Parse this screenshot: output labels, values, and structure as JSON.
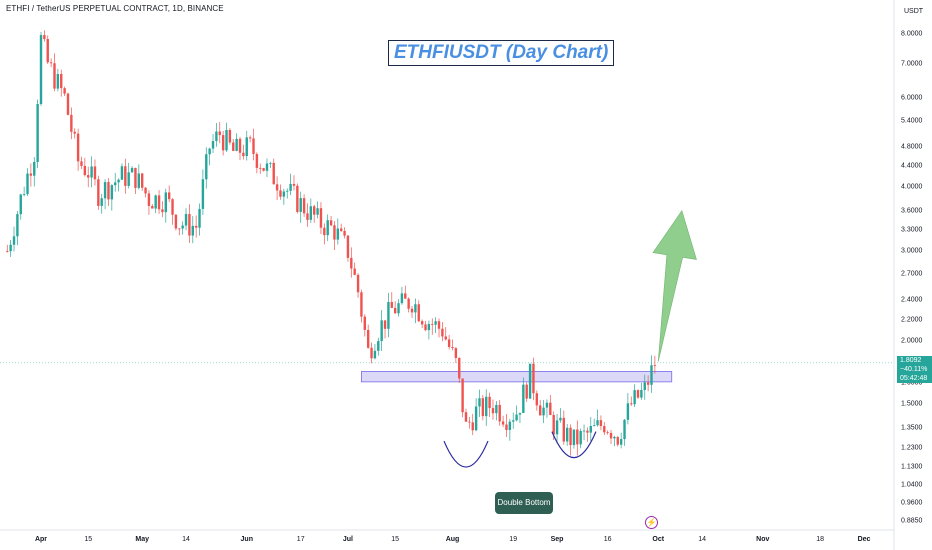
{
  "header": {
    "symbol_line": "ETHFI / TetherUS PERPETUAL CONTRACT, 1D, BINANCE"
  },
  "chart_title": "ETHFIUSDT (Day Chart)",
  "pattern_label": "Double Bottom",
  "price_axis": {
    "unit": "USDT",
    "ticks": [
      "8.0000",
      "7.0000",
      "6.0000",
      "5.4000",
      "4.8000",
      "4.4000",
      "4.0000",
      "3.6000",
      "3.3000",
      "3.0000",
      "2.7000",
      "2.4000",
      "2.2000",
      "2.0000",
      "1.8000",
      "1.6500",
      "1.5000",
      "1.3500",
      "1.2300",
      "1.1300",
      "1.0400",
      "0.9600",
      "0.8850"
    ]
  },
  "time_axis": {
    "ticks": [
      "Apr",
      "15",
      "May",
      "14",
      "Jun",
      "17",
      "Jul",
      "15",
      "Aug",
      "19",
      "Sep",
      "16",
      "Oct",
      "14",
      "Nov",
      "18",
      "Dec"
    ],
    "months": [
      "Apr",
      "May",
      "Jun",
      "Jul",
      "Aug",
      "Sep",
      "Oct",
      "Nov",
      "Dec"
    ]
  },
  "last_price_tag": {
    "price": "1.8092",
    "change": "−40.11%",
    "countdown": "05:42:48"
  },
  "colors": {
    "up": "#26a69a",
    "down": "#ef5350",
    "zone_fill": "#d9d4f7",
    "zone_border": "#6b5ce7",
    "arc": "#2a2a9e",
    "arrow": "#7dc67a",
    "title_text": "#4a90e2",
    "label_bg": "#2f5f53"
  },
  "icons": {
    "event_marker": "lightning-icon"
  },
  "chart_data": {
    "type": "candlestick",
    "title": "ETHFIUSDT (Day Chart)",
    "log_scale": true,
    "ylim": [
      0.86,
      9.0
    ],
    "x_axis_dates": [
      "2024-04-01",
      "2024-12-01"
    ],
    "price_waypoints": [
      {
        "date": "2024-03-22",
        "price": 3.0
      },
      {
        "date": "2024-03-26",
        "price": 3.8
      },
      {
        "date": "2024-03-30",
        "price": 4.7
      },
      {
        "date": "2024-04-01",
        "price": 7.8
      },
      {
        "date": "2024-04-03",
        "price": 7.0
      },
      {
        "date": "2024-04-08",
        "price": 6.0
      },
      {
        "date": "2024-04-12",
        "price": 4.5
      },
      {
        "date": "2024-04-15",
        "price": 4.3
      },
      {
        "date": "2024-04-18",
        "price": 3.9
      },
      {
        "date": "2024-04-25",
        "price": 4.2
      },
      {
        "date": "2024-04-29",
        "price": 4.2
      },
      {
        "date": "2024-05-03",
        "price": 3.8
      },
      {
        "date": "2024-05-08",
        "price": 3.8
      },
      {
        "date": "2024-05-12",
        "price": 3.4
      },
      {
        "date": "2024-05-17",
        "price": 3.35
      },
      {
        "date": "2024-05-21",
        "price": 4.8
      },
      {
        "date": "2024-05-24",
        "price": 5.1
      },
      {
        "date": "2024-05-28",
        "price": 4.7
      },
      {
        "date": "2024-06-02",
        "price": 4.8
      },
      {
        "date": "2024-06-06",
        "price": 4.4
      },
      {
        "date": "2024-06-12",
        "price": 4.0
      },
      {
        "date": "2024-06-19",
        "price": 3.6
      },
      {
        "date": "2024-06-23",
        "price": 3.4
      },
      {
        "date": "2024-06-27",
        "price": 3.3
      },
      {
        "date": "2024-07-01",
        "price": 3.0
      },
      {
        "date": "2024-07-04",
        "price": 2.5
      },
      {
        "date": "2024-07-07",
        "price": 1.9
      },
      {
        "date": "2024-07-10",
        "price": 2.1
      },
      {
        "date": "2024-07-14",
        "price": 2.3
      },
      {
        "date": "2024-07-20",
        "price": 2.4
      },
      {
        "date": "2024-07-24",
        "price": 2.2
      },
      {
        "date": "2024-07-29",
        "price": 2.1
      },
      {
        "date": "2024-08-02",
        "price": 1.8
      },
      {
        "date": "2024-08-05",
        "price": 1.35
      },
      {
        "date": "2024-08-08",
        "price": 1.45
      },
      {
        "date": "2024-08-13",
        "price": 1.5
      },
      {
        "date": "2024-08-17",
        "price": 1.42
      },
      {
        "date": "2024-08-20",
        "price": 1.45
      },
      {
        "date": "2024-08-24",
        "price": 1.7
      },
      {
        "date": "2024-08-27",
        "price": 1.5
      },
      {
        "date": "2024-08-31",
        "price": 1.37
      },
      {
        "date": "2024-09-06",
        "price": 1.27
      },
      {
        "date": "2024-09-11",
        "price": 1.32
      },
      {
        "date": "2024-09-15",
        "price": 1.38
      },
      {
        "date": "2024-09-19",
        "price": 1.3
      },
      {
        "date": "2024-09-23",
        "price": 1.5
      },
      {
        "date": "2024-09-27",
        "price": 1.6
      },
      {
        "date": "2024-09-30",
        "price": 1.81
      }
    ],
    "resistance_zone": {
      "from": "2024-07-05",
      "to": "2024-10-05",
      "low": 1.66,
      "high": 1.74
    },
    "current_price": 1.8092,
    "change_pct": -40.11,
    "projection_arrow": {
      "from": {
        "date": "2024-10-01",
        "price": 1.82
      },
      "to": {
        "date": "2024-10-08",
        "price": 3.6
      }
    },
    "double_bottom_lows": [
      {
        "date": "2024-08-05",
        "price": 1.15
      },
      {
        "date": "2024-09-06",
        "price": 1.2
      }
    ]
  }
}
